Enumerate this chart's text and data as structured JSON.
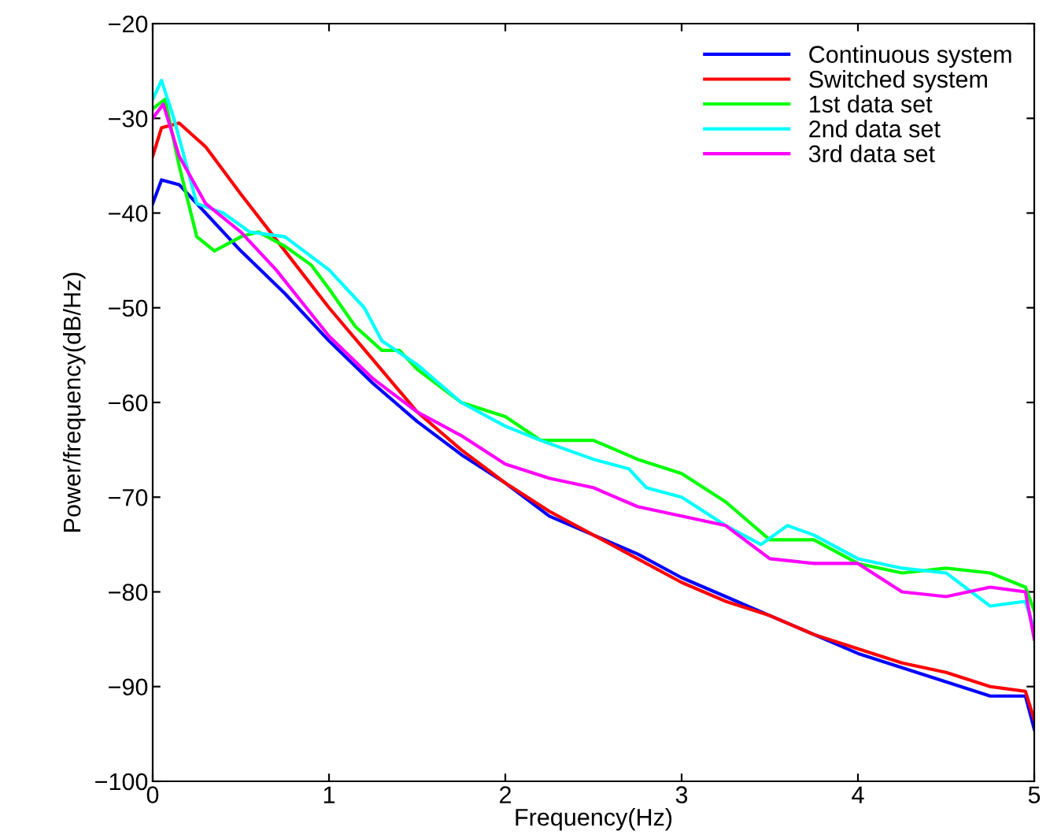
{
  "chart_data": {
    "type": "line",
    "xlabel": "Frequency(Hz)",
    "ylabel": "Power/frequency(dB/Hz)",
    "xlim": [
      0,
      5
    ],
    "ylim": [
      -100,
      -20
    ],
    "xticks": [
      0,
      1,
      2,
      3,
      4,
      5
    ],
    "yticks": [
      -100,
      -90,
      -80,
      -70,
      -60,
      -50,
      -40,
      -30,
      -20
    ],
    "grid": false,
    "legend": "top right",
    "marker": "none",
    "line_style": "solid",
    "series": [
      {
        "name": "Continuous system",
        "color": "#0000ff",
        "x": [
          0,
          0.05,
          0.15,
          0.3,
          0.5,
          0.75,
          1.0,
          1.25,
          1.5,
          1.75,
          2.0,
          2.25,
          2.5,
          2.75,
          3.0,
          3.25,
          3.5,
          3.75,
          4.0,
          4.25,
          4.5,
          4.75,
          4.95,
          5.0
        ],
        "values": [
          -39,
          -36.5,
          -37,
          -40,
          -44,
          -48.5,
          -53.5,
          -58,
          -62,
          -65.5,
          -68.5,
          -72,
          -74,
          -76,
          -78.5,
          -80.5,
          -82.5,
          -84.5,
          -86.5,
          -88,
          -89.5,
          -91,
          -91,
          -94.5
        ]
      },
      {
        "name": "Switched system",
        "color": "#ff0000",
        "x": [
          0,
          0.05,
          0.15,
          0.3,
          0.5,
          0.75,
          1.0,
          1.25,
          1.5,
          1.75,
          2.0,
          2.25,
          2.5,
          2.75,
          3.0,
          3.25,
          3.5,
          3.75,
          4.0,
          4.25,
          4.5,
          4.75,
          4.95,
          5.0
        ],
        "values": [
          -34,
          -31,
          -30.5,
          -33,
          -38,
          -44,
          -50,
          -55.5,
          -61,
          -65,
          -68.5,
          -71.5,
          -74,
          -76.5,
          -79,
          -81,
          -82.5,
          -84.5,
          -86,
          -87.5,
          -88.5,
          -90,
          -90.5,
          -93.5
        ]
      },
      {
        "name": "1st data set",
        "color": "#00ff00",
        "x": [
          0,
          0.07,
          0.15,
          0.25,
          0.35,
          0.5,
          0.6,
          0.75,
          0.9,
          1.0,
          1.15,
          1.3,
          1.4,
          1.5,
          1.75,
          2.0,
          2.2,
          2.5,
          2.75,
          3.0,
          3.25,
          3.5,
          3.75,
          4.0,
          4.25,
          4.5,
          4.75,
          4.95,
          5.0
        ],
        "values": [
          -29,
          -28,
          -35,
          -42.5,
          -44,
          -42.5,
          -42,
          -43.5,
          -45.5,
          -48,
          -52,
          -54.5,
          -54.5,
          -56.5,
          -60,
          -61.5,
          -64,
          -64,
          -66,
          -67.5,
          -70.5,
          -74.5,
          -74.5,
          -77,
          -78,
          -77.5,
          -78,
          -79.5,
          -82
        ]
      },
      {
        "name": "2nd data set",
        "color": "#00ffff",
        "x": [
          0,
          0.05,
          0.12,
          0.25,
          0.4,
          0.55,
          0.75,
          1.0,
          1.2,
          1.3,
          1.5,
          1.75,
          2.0,
          2.2,
          2.5,
          2.7,
          2.8,
          3.0,
          3.25,
          3.45,
          3.6,
          3.75,
          4.0,
          4.25,
          4.5,
          4.75,
          4.95,
          5.0
        ],
        "values": [
          -28,
          -26,
          -30,
          -39,
          -40,
          -42,
          -42.5,
          -46,
          -50,
          -53.5,
          -56,
          -60,
          -62.5,
          -64,
          -66,
          -67,
          -69,
          -70,
          -73,
          -75,
          -73,
          -74,
          -76.5,
          -77.5,
          -78,
          -81.5,
          -81,
          -84
        ]
      },
      {
        "name": "3rd data set",
        "color": "#ff00ff",
        "x": [
          0,
          0.06,
          0.15,
          0.3,
          0.5,
          0.7,
          0.85,
          1.0,
          1.25,
          1.5,
          1.75,
          2.0,
          2.25,
          2.5,
          2.75,
          3.0,
          3.25,
          3.5,
          3.75,
          4.0,
          4.25,
          4.5,
          4.75,
          4.95,
          5.0
        ],
        "values": [
          -30,
          -28.5,
          -34,
          -39,
          -42,
          -46,
          -49.5,
          -53,
          -57.5,
          -61,
          -63.5,
          -66.5,
          -68,
          -69,
          -71,
          -72,
          -73,
          -76.5,
          -77,
          -77,
          -80,
          -80.5,
          -79.5,
          -80,
          -85
        ]
      }
    ]
  }
}
